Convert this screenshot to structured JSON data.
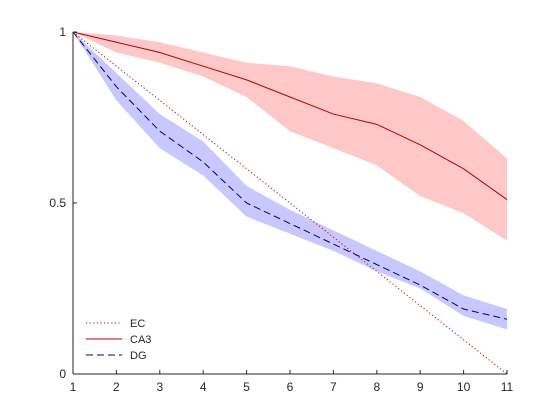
{
  "chart_data": {
    "type": "line",
    "title": "",
    "xlabel": "",
    "ylabel": "",
    "x": [
      1,
      2,
      3,
      4,
      5,
      6,
      7,
      8,
      9,
      10,
      11
    ],
    "xlim": [
      1,
      11
    ],
    "ylim": [
      0,
      1
    ],
    "xticks": [
      1,
      2,
      3,
      4,
      5,
      6,
      7,
      8,
      9,
      10,
      11
    ],
    "xtick_labels": [
      "1",
      "2",
      "3",
      "4",
      "5",
      "6",
      "7",
      "8",
      "9",
      "10",
      "11"
    ],
    "yticks": [
      0,
      0.5,
      1
    ],
    "ytick_labels": [
      "0",
      "0.5",
      "1"
    ],
    "grid": false,
    "legend_position": "bottom-left",
    "series": [
      {
        "name": "EC",
        "style": "dotted",
        "color": "#cc0000",
        "values": [
          1.0,
          0.9,
          0.8,
          0.7,
          0.6,
          0.5,
          0.4,
          0.3,
          0.2,
          0.1,
          0.0
        ]
      },
      {
        "name": "CA3",
        "style": "solid",
        "color": "#b40000",
        "band_color": "#ffc8c8",
        "values": [
          1.0,
          0.97,
          0.94,
          0.9,
          0.86,
          0.81,
          0.76,
          0.73,
          0.67,
          0.6,
          0.51
        ],
        "lower": [
          1.0,
          0.94,
          0.91,
          0.87,
          0.81,
          0.71,
          0.66,
          0.61,
          0.52,
          0.47,
          0.39
        ],
        "upper": [
          1.0,
          0.99,
          0.97,
          0.94,
          0.91,
          0.9,
          0.87,
          0.85,
          0.81,
          0.74,
          0.63
        ]
      },
      {
        "name": "DG",
        "style": "dashed",
        "color": "#00007f",
        "band_color": "#c8c8ff",
        "values": [
          1.0,
          0.84,
          0.71,
          0.62,
          0.5,
          0.44,
          0.38,
          0.32,
          0.26,
          0.19,
          0.16
        ],
        "lower": [
          1.0,
          0.8,
          0.66,
          0.58,
          0.46,
          0.41,
          0.36,
          0.3,
          0.25,
          0.17,
          0.13
        ],
        "upper": [
          1.0,
          0.88,
          0.76,
          0.68,
          0.55,
          0.48,
          0.42,
          0.36,
          0.3,
          0.23,
          0.19
        ]
      }
    ]
  }
}
